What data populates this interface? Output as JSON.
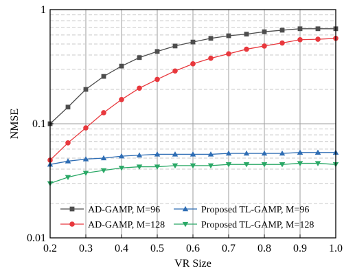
{
  "chart_data": {
    "type": "line",
    "title": "",
    "xlabel": "VR Size",
    "ylabel": "NMSE",
    "xlim": [
      0.2,
      1.0
    ],
    "ylim": [
      0.01,
      1
    ],
    "yscale": "log",
    "grid": true,
    "legend_position": "bottom",
    "x_ticks": [
      "0.2",
      "0.3",
      "0.4",
      "0.5",
      "0.6",
      "0.7",
      "0.8",
      "0.9",
      "1.0"
    ],
    "y_ticks": [
      "0.01",
      "0.1",
      "1"
    ],
    "x": [
      0.2,
      0.25,
      0.3,
      0.35,
      0.4,
      0.45,
      0.5,
      0.55,
      0.6,
      0.65,
      0.7,
      0.75,
      0.8,
      0.85,
      0.9,
      0.95,
      1.0
    ],
    "series": [
      {
        "name": "AD-GAMP, M=96",
        "color": "#4d4d4d",
        "marker": "square",
        "values": [
          0.1,
          0.14,
          0.2,
          0.26,
          0.32,
          0.38,
          0.43,
          0.48,
          0.52,
          0.56,
          0.59,
          0.61,
          0.64,
          0.66,
          0.68,
          0.68,
          0.68
        ]
      },
      {
        "name": "AD-GAMP, M=128",
        "color": "#e8383d",
        "marker": "circle",
        "values": [
          0.048,
          0.068,
          0.092,
          0.125,
          0.163,
          0.205,
          0.245,
          0.29,
          0.335,
          0.375,
          0.41,
          0.45,
          0.48,
          0.51,
          0.545,
          0.55,
          0.56
        ]
      },
      {
        "name": "Proposed TL-GAMP, M=96",
        "color": "#2e6db4",
        "marker": "triangle-up",
        "values": [
          0.044,
          0.047,
          0.049,
          0.05,
          0.052,
          0.053,
          0.054,
          0.054,
          0.054,
          0.054,
          0.055,
          0.055,
          0.055,
          0.055,
          0.056,
          0.056,
          0.056
        ]
      },
      {
        "name": "Proposed TL-GAMP, M=128",
        "color": "#2aa866",
        "marker": "triangle-down",
        "values": [
          0.03,
          0.034,
          0.037,
          0.039,
          0.041,
          0.042,
          0.042,
          0.043,
          0.043,
          0.043,
          0.044,
          0.044,
          0.044,
          0.044,
          0.045,
          0.045,
          0.044
        ]
      }
    ]
  }
}
